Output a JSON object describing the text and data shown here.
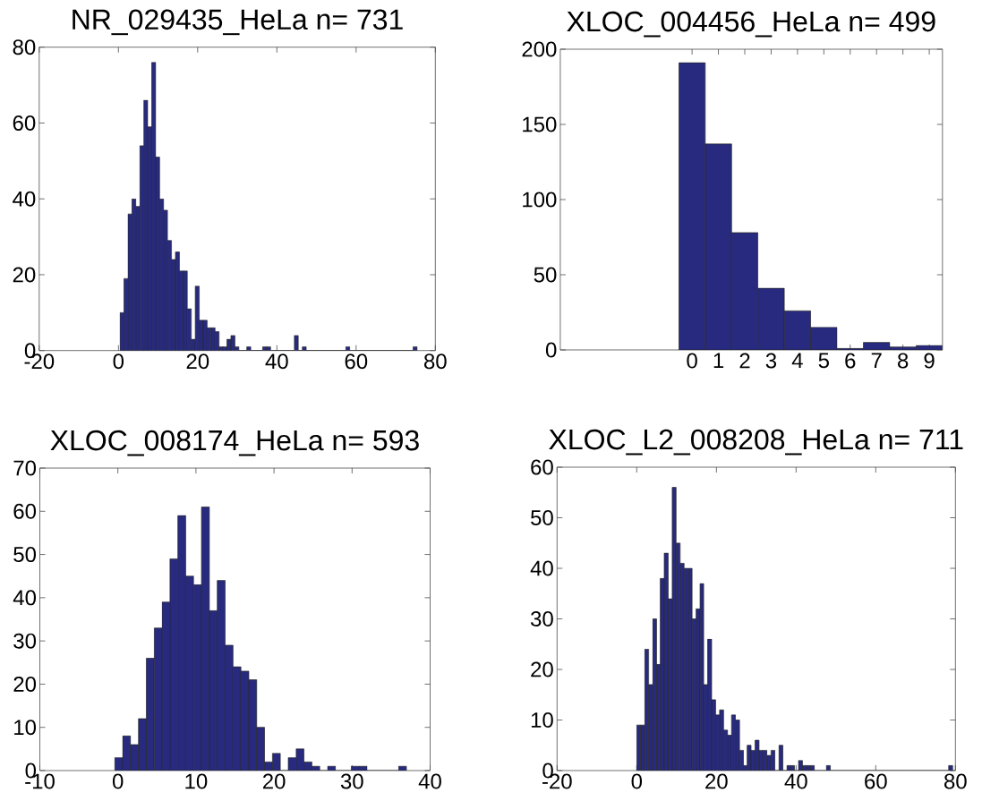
{
  "chart_data": [
    {
      "type": "histogram",
      "title": "NR_029435_HeLa n= 731",
      "color": "#272a7e",
      "bins": [
        0.4,
        1.4,
        2.4,
        3.4,
        4.4,
        5.4,
        6.4,
        7.4,
        8.4,
        9.4,
        10.4,
        11.4,
        12.4,
        13.4,
        14.4,
        15.4,
        16.4,
        17.4,
        18.4,
        19.4,
        20.4,
        21.4,
        22.4,
        23.4,
        24.4,
        25.4,
        26.4,
        27.4,
        28.4,
        29.4,
        30.4,
        31.4,
        32.4,
        33.4,
        34.4,
        35.4,
        36.4,
        37.4,
        38.4,
        39.4,
        40.4,
        41.4,
        42.4,
        43.4,
        44.4,
        45.4,
        46.4,
        47.4,
        48.4,
        49.4,
        50.4,
        51.4,
        52.4,
        53.4,
        54.4,
        55.4,
        56.4,
        57.4,
        58.4,
        59.4,
        60.4,
        61.4,
        62.4,
        63.4,
        64.4,
        65.4,
        66.4,
        67.4,
        68.4,
        69.4,
        70.4,
        71.4,
        72.4,
        73.4,
        74.4,
        75.4
      ],
      "values": [
        10,
        19,
        36,
        40,
        38,
        54,
        66,
        59,
        76,
        51,
        40,
        37,
        29,
        24,
        26,
        21,
        21,
        11,
        3,
        17,
        8,
        8,
        6,
        6,
        5,
        1,
        1,
        3,
        4,
        1,
        0,
        0,
        1,
        0,
        0,
        0,
        1,
        1,
        0,
        0,
        0,
        0,
        0,
        0,
        4,
        0,
        1,
        0,
        0,
        0,
        0,
        0,
        0,
        0,
        0,
        0,
        0,
        1,
        0,
        0,
        0,
        0,
        0,
        0,
        0,
        0,
        0,
        0,
        0,
        0,
        0,
        0,
        0,
        0,
        1
      ],
      "xlim": [
        -20,
        80
      ],
      "xticks": [
        -20,
        0,
        20,
        40,
        60,
        80
      ],
      "ylim": [
        0,
        80
      ],
      "yticks": [
        0,
        20,
        40,
        60,
        80
      ]
    },
    {
      "type": "histogram",
      "title": "XLOC_004456_HeLa n= 499",
      "color": "#272a7e",
      "bins": [
        -0.5,
        0.5,
        1.5,
        2.5,
        3.5,
        4.5,
        5.5,
        6.5,
        7.5,
        8.5,
        9.5
      ],
      "values": [
        191,
        137,
        78,
        41,
        26,
        15,
        1,
        5,
        2,
        3
      ],
      "xlim": [
        -5,
        9.5
      ],
      "xticks": [
        0,
        1,
        2,
        3,
        4,
        5,
        6,
        7,
        8,
        9
      ],
      "ylim": [
        0,
        200
      ],
      "yticks": [
        0,
        50,
        100,
        150,
        200
      ]
    },
    {
      "type": "histogram",
      "title": "XLOC_008174_HeLa n= 593",
      "color": "#272a7e",
      "bins": [
        -0.4,
        0.61,
        1.62,
        2.63,
        3.64,
        4.65,
        5.66,
        6.67,
        7.68,
        8.69,
        9.7,
        10.71,
        11.72,
        12.73,
        13.74,
        14.75,
        15.76,
        16.77,
        17.78,
        18.79,
        19.8,
        20.81,
        21.82,
        22.83,
        23.84,
        24.85,
        25.86,
        26.87,
        27.88,
        28.89,
        29.9,
        30.91,
        31.92,
        32.93,
        33.94,
        34.95,
        35.96,
        36.97
      ],
      "values": [
        3,
        8,
        6,
        12,
        26,
        33,
        39,
        49,
        59,
        45,
        43,
        61,
        37,
        44,
        29,
        24,
        23,
        21,
        10,
        2,
        4,
        0,
        3,
        5,
        2,
        1,
        0,
        1,
        0,
        0,
        1,
        1,
        0,
        0,
        0,
        0,
        1
      ],
      "xlim": [
        -10,
        40
      ],
      "xticks": [
        -10,
        0,
        10,
        20,
        30,
        40
      ],
      "ylim": [
        0,
        70
      ],
      "yticks": [
        0,
        10,
        20,
        30,
        40,
        50,
        60,
        70
      ]
    },
    {
      "type": "histogram",
      "title": "XLOC_L2_008208_HeLa n= 711",
      "color": "#272a7e",
      "bins": [
        0,
        1.0,
        2.0,
        3.0,
        4.0,
        5.0,
        5.9,
        6.9,
        7.9,
        8.9,
        9.9,
        10.9,
        11.9,
        12.9,
        13.9,
        14.9,
        15.9,
        16.8,
        17.8,
        18.8,
        19.8,
        20.8,
        21.8,
        22.8,
        23.8,
        24.8,
        25.8,
        26.8,
        27.7,
        28.7,
        29.7,
        30.7,
        31.7,
        32.7,
        33.7,
        34.7,
        35.7,
        36.7,
        37.7,
        38.6,
        39.6,
        40.6,
        41.6,
        42.6,
        43.6,
        44.6,
        45.6,
        46.6,
        47.6,
        48.6,
        49.6,
        50.5,
        51.5,
        52.5,
        53.5,
        54.5,
        55.5,
        56.5,
        57.5,
        58.5,
        59.5,
        60.5,
        61.4,
        62.4,
        63.4,
        64.4,
        65.4,
        66.4,
        67.4,
        68.4,
        69.4,
        70.4,
        71.4,
        72.3,
        73.3,
        74.3,
        75.3,
        76.3,
        77.3,
        78.3,
        79.3
      ],
      "values": [
        9,
        9,
        24,
        17,
        30,
        21,
        38,
        43,
        34,
        56,
        45,
        41,
        40,
        40,
        30,
        32,
        37,
        17,
        26,
        14,
        11,
        12,
        8,
        7,
        11,
        10,
        4,
        1,
        5,
        4,
        6,
        4,
        4,
        3,
        4,
        0,
        5,
        0,
        1,
        1,
        0,
        2,
        1,
        1,
        1,
        0,
        0,
        0,
        1,
        0,
        0,
        0,
        0,
        0,
        0,
        0,
        0,
        0,
        0,
        0,
        0,
        0,
        0,
        0,
        0,
        0,
        0,
        0,
        0,
        0,
        0,
        0,
        0,
        0,
        0,
        0,
        0,
        0,
        0,
        1
      ],
      "xlim": [
        -20,
        80
      ],
      "xticks": [
        -20,
        0,
        20,
        40,
        60,
        80
      ],
      "ylim": [
        0,
        60
      ],
      "yticks": [
        0,
        10,
        20,
        30,
        40,
        50,
        60
      ]
    }
  ]
}
